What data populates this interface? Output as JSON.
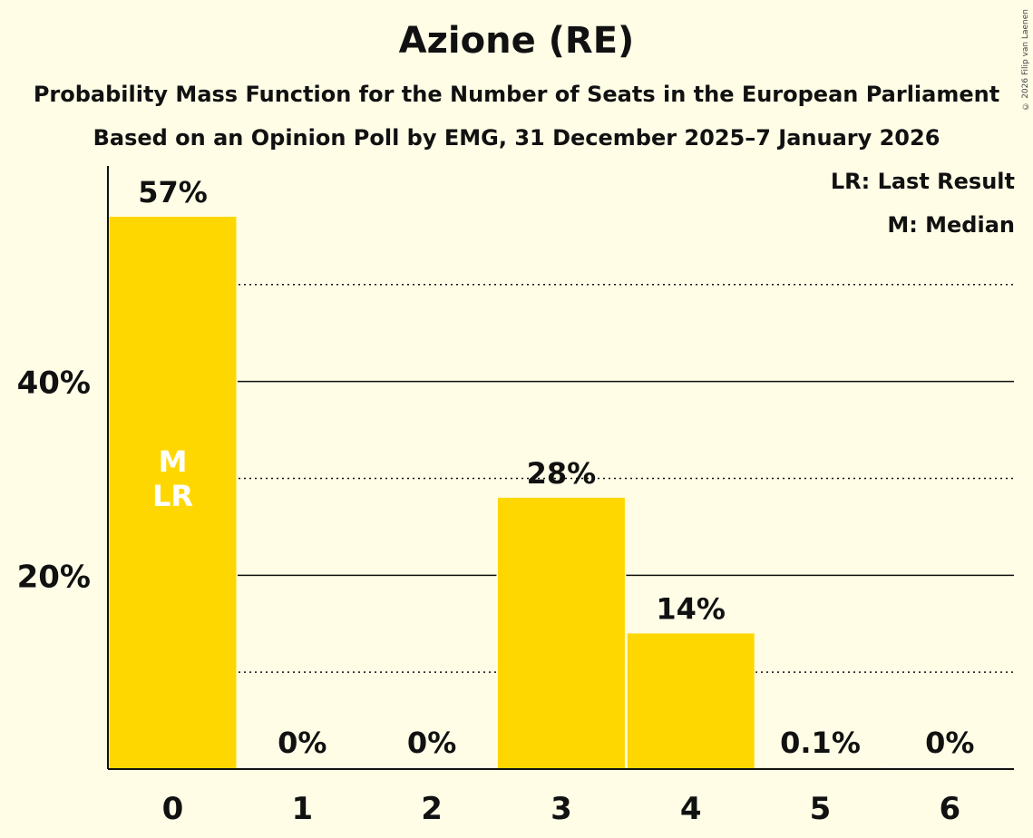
{
  "header": {
    "title": "Azione (RE)",
    "subtitle": "Probability Mass Function for the Number of Seats in the European Parliament",
    "poll_note": "Based on an Opinion Poll by EMG, 31 December 2025–7 January 2026",
    "copyright": "© 2026 Filip van Laenen"
  },
  "legend": {
    "last_result": "LR: Last Result",
    "median": "M: Median"
  },
  "colors": {
    "bar": "#FFD700",
    "background": "#FFFDE6",
    "text": "#111111",
    "bar_marker_text": "#FFFFFF"
  },
  "chart_data": {
    "type": "bar",
    "title": "Azione (RE)",
    "xlabel": "",
    "ylabel": "",
    "categories": [
      "0",
      "1",
      "2",
      "3",
      "4",
      "5",
      "6"
    ],
    "values": [
      57,
      0,
      0,
      28,
      14,
      0.1,
      0
    ],
    "value_labels": [
      "57%",
      "0%",
      "0%",
      "28%",
      "14%",
      "0.1%",
      "0%"
    ],
    "ylim": [
      0,
      62
    ],
    "y_ticks": [
      {
        "value": 20,
        "label": "20%"
      },
      {
        "value": 40,
        "label": "40%"
      }
    ],
    "solid_gridlines": [
      20,
      40
    ],
    "dotted_gridlines": [
      10,
      30,
      50
    ],
    "median_index": 0,
    "last_result_index": 0,
    "median_marker": "M",
    "last_result_marker": "LR"
  }
}
